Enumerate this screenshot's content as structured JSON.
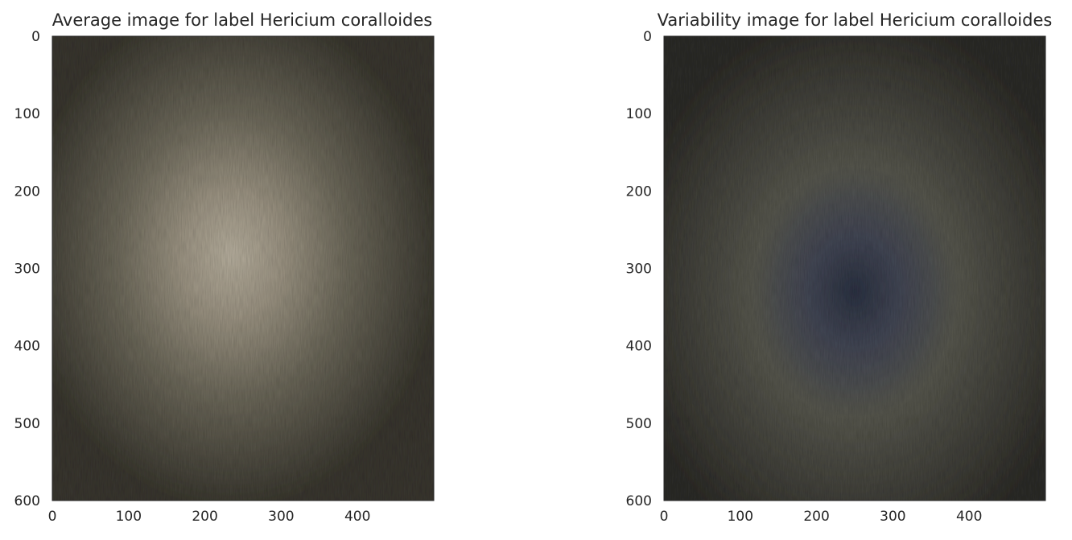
{
  "chart_data": [
    {
      "type": "image",
      "title": "Average image for label Hericium coralloides",
      "xlim": [
        0,
        500
      ],
      "ylim": [
        600,
        0
      ],
      "xticks": [
        0,
        100,
        200,
        300,
        400
      ],
      "yticks": [
        0,
        100,
        200,
        300,
        400,
        500,
        600
      ],
      "grid": false,
      "colors": {
        "dark": "#3a3830",
        "center": "#b8b09f",
        "mid": "#6e6a5c"
      }
    },
    {
      "type": "image",
      "title": "Variability image for label Hericium coralloides",
      "xlim": [
        0,
        500
      ],
      "ylim": [
        600,
        0
      ],
      "xticks": [
        0,
        100,
        200,
        300,
        400
      ],
      "yticks": [
        0,
        100,
        200,
        300,
        400,
        500,
        600
      ],
      "grid": false,
      "colors": {
        "dark": "#2f2e2a",
        "center": "#2e3444",
        "mid": "#58584f"
      }
    }
  ]
}
